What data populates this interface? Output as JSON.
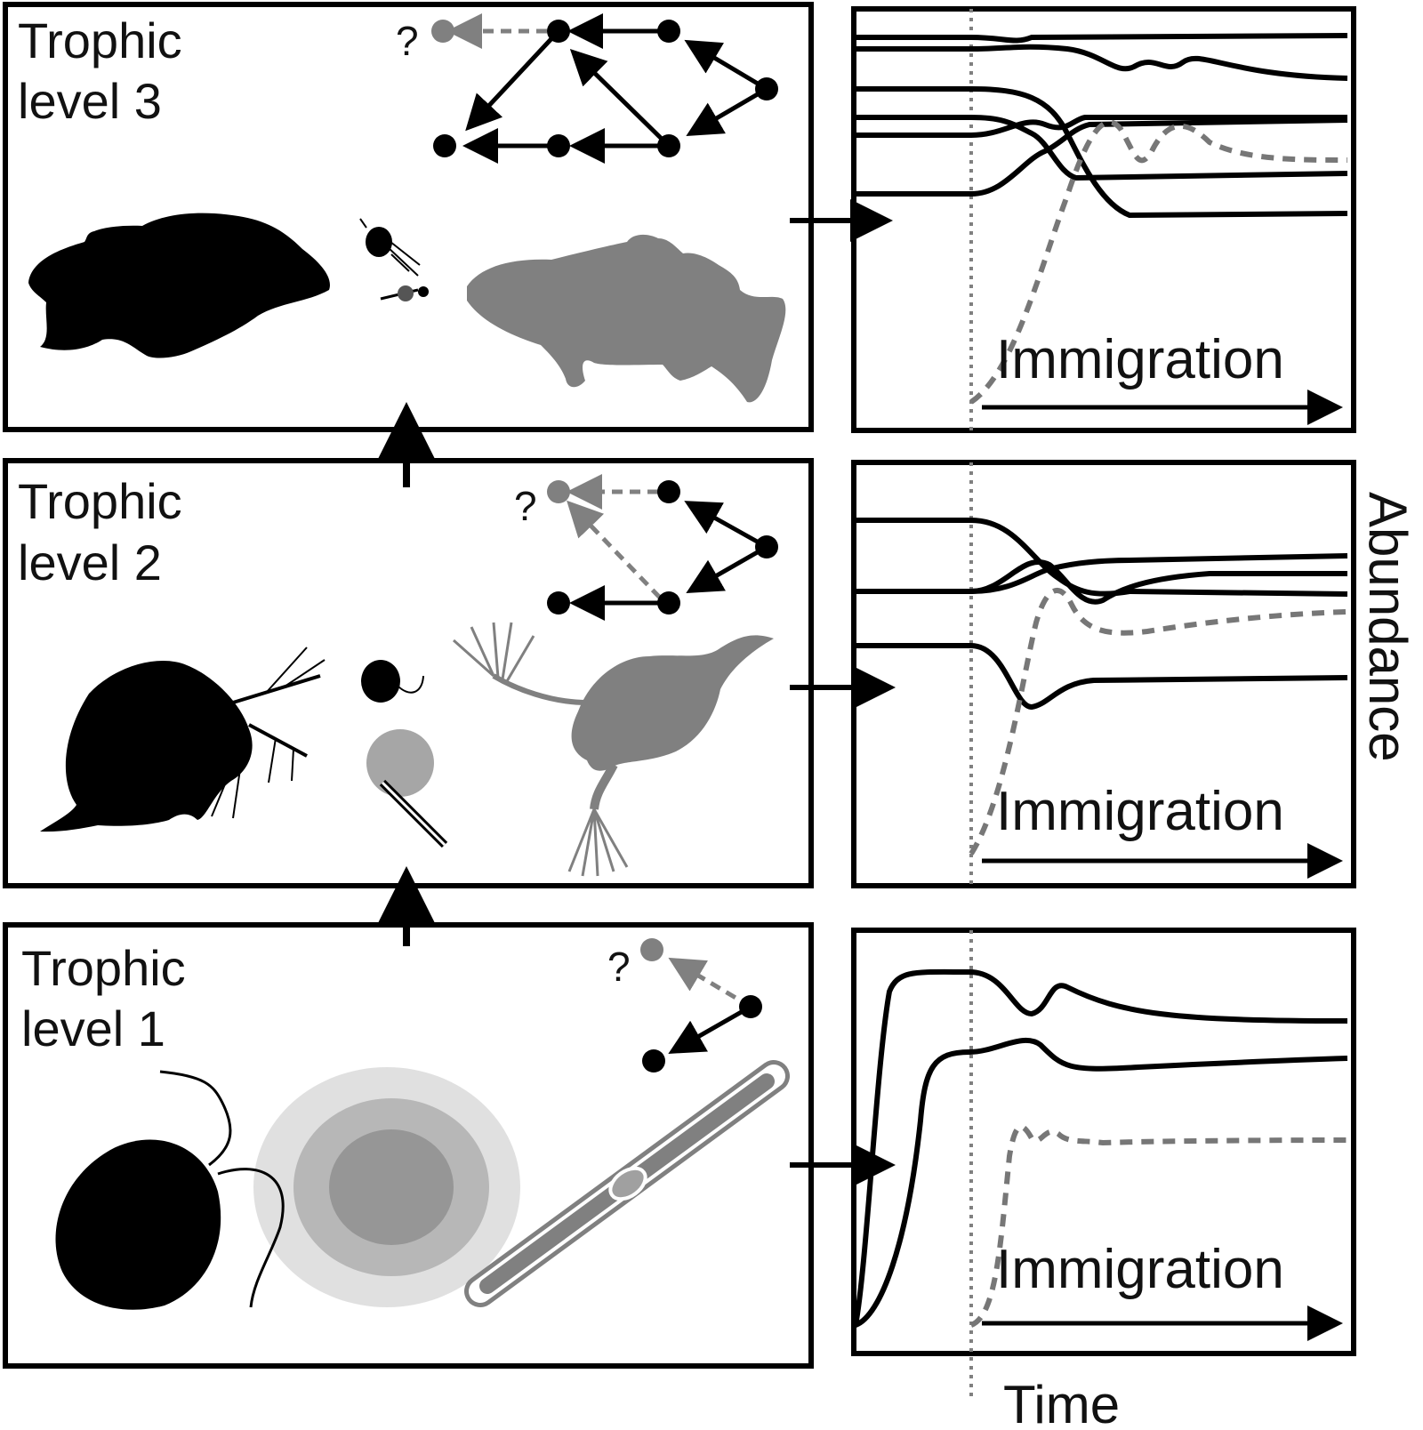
{
  "panels": [
    {
      "title_line1": "Trophic",
      "title_line2": "level 3",
      "question_mark": "?",
      "immigration_label": "Immigration",
      "organisms": [
        "fish-silhouette",
        "zooplankton-silhouette",
        "phytoplankton-silhouette",
        "perch-silhouette"
      ]
    },
    {
      "title_line1": "Trophic",
      "title_line2": "level 2",
      "question_mark": "?",
      "immigration_label": "Immigration",
      "organisms": [
        "daphnia-silhouette",
        "algae-silhouette",
        "rotifer-silhouette"
      ]
    },
    {
      "title_line1": "Trophic",
      "title_line2": "level 1",
      "question_mark": "?",
      "immigration_label": "Immigration",
      "organisms": [
        "flagellate-silhouette",
        "colony-silhouette",
        "filament-silhouette"
      ]
    }
  ],
  "axes": {
    "y_label": "Abundance",
    "x_label": "Time"
  },
  "colors": {
    "resident": "#000000",
    "invader": "#808080",
    "invader_line": "#777777"
  }
}
